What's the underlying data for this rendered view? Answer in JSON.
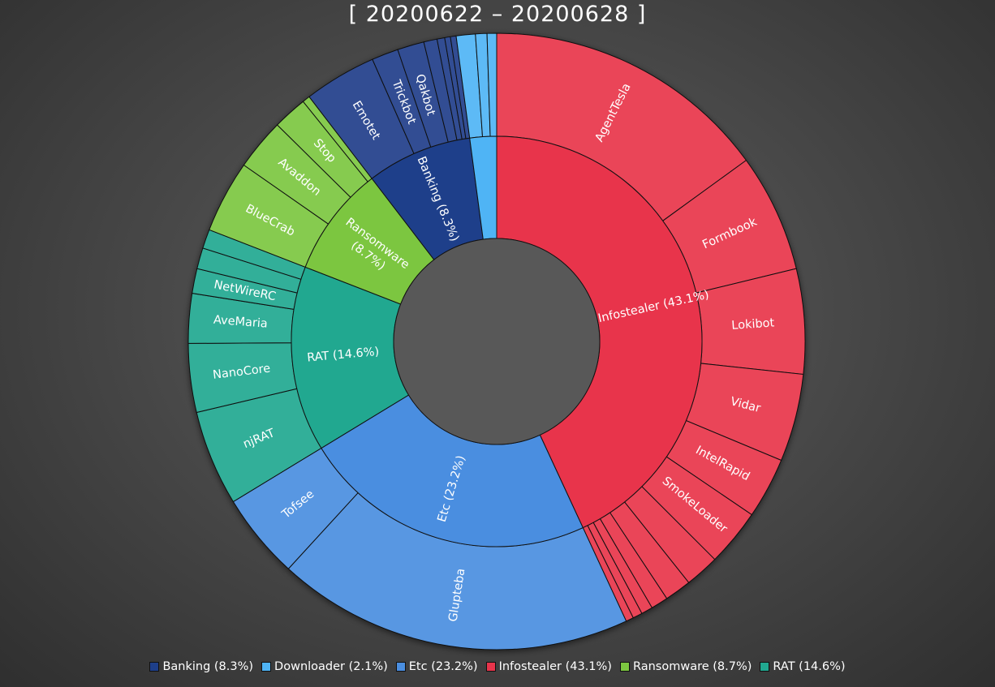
{
  "chart_data": {
    "type": "sunburst",
    "title": "[ 20200622 – 20200628 ]",
    "legend_position": "bottom",
    "categories": [
      {
        "name": "Infostealer",
        "label": "Infostealer (43.1%)",
        "percent": 43.1,
        "color": "#e8344b",
        "children": [
          {
            "name": "AgentTesla",
            "value": 15.0
          },
          {
            "name": "Formbook",
            "value": 6.2
          },
          {
            "name": "Lokibot",
            "value": 5.5
          },
          {
            "name": "Vidar",
            "value": 4.6
          },
          {
            "name": "IntelRapid",
            "value": 3.2
          },
          {
            "name": "SmokeLoader",
            "value": 3.0
          },
          {
            "name": "",
            "value": 1.8
          },
          {
            "name": "",
            "value": 1.4
          },
          {
            "name": "",
            "value": 0.9
          },
          {
            "name": "",
            "value": 0.6
          },
          {
            "name": "",
            "value": 0.5
          },
          {
            "name": "",
            "value": 0.4
          }
        ]
      },
      {
        "name": "Etc",
        "label": "Etc (23.2%)",
        "percent": 23.2,
        "color": "#4a8ee0",
        "children": [
          {
            "name": "Glupteba",
            "value": 18.7
          },
          {
            "name": "Tofsee",
            "value": 4.5
          }
        ]
      },
      {
        "name": "RAT",
        "label": "RAT (14.6%)",
        "percent": 14.6,
        "color": "#21a890",
        "children": [
          {
            "name": "njRAT",
            "value": 5.0
          },
          {
            "name": "NanoCore",
            "value": 3.6
          },
          {
            "name": "AveMaria",
            "value": 2.6
          },
          {
            "name": "NetWireRC",
            "value": 1.3
          },
          {
            "name": "",
            "value": 1.1
          },
          {
            "name": "",
            "value": 1.0
          }
        ]
      },
      {
        "name": "Ransomware",
        "label": "Ransomware (8.7%)",
        "percent": 8.7,
        "color": "#7cc640",
        "children": [
          {
            "name": "BlueCrab",
            "value": 3.8
          },
          {
            "name": "Avaddon",
            "value": 2.7
          },
          {
            "name": "Stop",
            "value": 1.8
          },
          {
            "name": "",
            "value": 0.4
          }
        ]
      },
      {
        "name": "Banking",
        "label": "Banking (8.3%)",
        "percent": 8.3,
        "color": "#1e3f8a",
        "children": [
          {
            "name": "Emotet",
            "value": 3.8
          },
          {
            "name": "Trickbot",
            "value": 1.4
          },
          {
            "name": "Qakbot",
            "value": 1.4
          },
          {
            "name": "",
            "value": 0.7
          },
          {
            "name": "",
            "value": 0.4
          },
          {
            "name": "",
            "value": 0.3
          },
          {
            "name": "",
            "value": 0.3
          }
        ]
      },
      {
        "name": "Downloader",
        "label": "Downloader (2.1%)",
        "percent": 2.1,
        "color": "#4fb4f5",
        "children": [
          {
            "name": "",
            "value": 1.0
          },
          {
            "name": "",
            "value": 0.6
          },
          {
            "name": "",
            "value": 0.5
          }
        ]
      }
    ],
    "legend": [
      {
        "label": "Banking (8.3%)",
        "color": "#1e3f8a"
      },
      {
        "label": "Downloader (2.1%)",
        "color": "#4fb4f5"
      },
      {
        "label": "Etc (23.2%)",
        "color": "#4a8ee0"
      },
      {
        "label": "Infostealer (43.1%)",
        "color": "#e8344b"
      },
      {
        "label": "Ransomware (8.7%)",
        "color": "#7cc640"
      },
      {
        "label": "RAT (14.6%)",
        "color": "#21a890"
      }
    ]
  }
}
